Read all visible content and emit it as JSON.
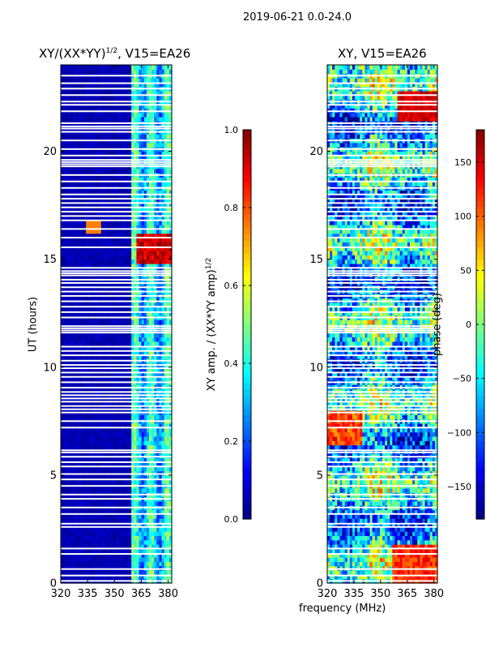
{
  "figure": {
    "suptitle": "2019-06-21 0.0-24.0",
    "shared_xlabel": "frequency (MHz)"
  },
  "chart_data": [
    {
      "type": "heatmap",
      "title": "XY/(XX*YY)^1/2, V15=EA26",
      "title_main": "XY/(XX*YY)",
      "title_sup": "1/2",
      "title_tail": ", V15=EA26",
      "xlabel": "frequency (MHz)",
      "ylabel": "UT (hours)",
      "xlim": [
        320,
        382
      ],
      "ylim": [
        0,
        24
      ],
      "xticks": [
        320,
        335,
        350,
        365,
        380
      ],
      "yticks": [
        0,
        5,
        10,
        15,
        20
      ],
      "colorbar": {
        "label": "XY amp. / (XX*YY amp)^1/2",
        "label_main": "XY amp. / (XX*YY amp)",
        "label_sup": "1/2",
        "range": [
          0.0,
          1.0
        ],
        "ticks": [
          "0.0",
          "0.2",
          "0.4",
          "0.6",
          "0.8",
          "1.0"
        ],
        "colormap": "jet"
      },
      "features": {
        "background_value": 0.02,
        "band_mhz": [
          359,
          382
        ],
        "band_value": 0.35,
        "hot_block_hours": [
          14.8,
          16.2
        ],
        "hot_block_value": 0.95,
        "spike_hour": 16.5,
        "spike_mhz": 338
      }
    },
    {
      "type": "heatmap",
      "title": "XY, V15=EA26",
      "xlabel": "frequency (MHz)",
      "ylabel": "",
      "xlim": [
        320,
        382
      ],
      "ylim": [
        0,
        24
      ],
      "xticks": [
        320,
        335,
        350,
        365,
        380
      ],
      "yticks": [
        0,
        5,
        10,
        15,
        20
      ],
      "colorbar": {
        "label": "phase (deg)",
        "range": [
          -180,
          180
        ],
        "ticks": [
          "−150",
          "−100",
          "−50",
          "0",
          "50",
          "100",
          "150"
        ],
        "tick_values": [
          -150,
          -100,
          -50,
          0,
          50,
          100,
          150
        ],
        "colormap": "jet"
      },
      "features": {
        "hot_region_hours": [
          6.5,
          8.0
        ],
        "hot_region_mhz": [
          320,
          340
        ],
        "hot_region_value_deg": 110,
        "warm_region_hours": [
          0,
          1.8
        ],
        "warm_region_mhz": [
          357,
          382
        ],
        "warm_region_value_deg": 120,
        "top_hot_hours": [
          21.5,
          22.8
        ],
        "top_hot_mhz": [
          360,
          382
        ],
        "top_hot_value_deg": 150
      }
    }
  ],
  "masked_hours": [
    0.1,
    0.35,
    0.65,
    1.35,
    1.6,
    2.6,
    2.75,
    3.2,
    3.5,
    3.9,
    4.1,
    4.5,
    4.8,
    5.05,
    5.4,
    5.6,
    5.85,
    6.05,
    6.15,
    7.2,
    7.5,
    7.9,
    8.05,
    8.2,
    8.4,
    8.55,
    8.7,
    8.85,
    9.05,
    9.3,
    9.55,
    9.75,
    9.95,
    10.1,
    10.3,
    10.55,
    10.75,
    10.95,
    11.6,
    11.7,
    11.8,
    11.9,
    12.3,
    12.55,
    12.8,
    13.05,
    13.3,
    13.5,
    13.7,
    13.9,
    14.05,
    14.25,
    14.35,
    14.45,
    14.6,
    15.55,
    16.0,
    16.4,
    16.8,
    17.0,
    17.2,
    17.4,
    17.6,
    17.8,
    18.0,
    18.3,
    18.6,
    18.9,
    19.3,
    19.4,
    19.5,
    19.6,
    19.8,
    20.1,
    20.5,
    20.9,
    21.05,
    21.15,
    21.3,
    21.85,
    22.15,
    22.3,
    22.6,
    22.9,
    23.15,
    23.5
  ]
}
